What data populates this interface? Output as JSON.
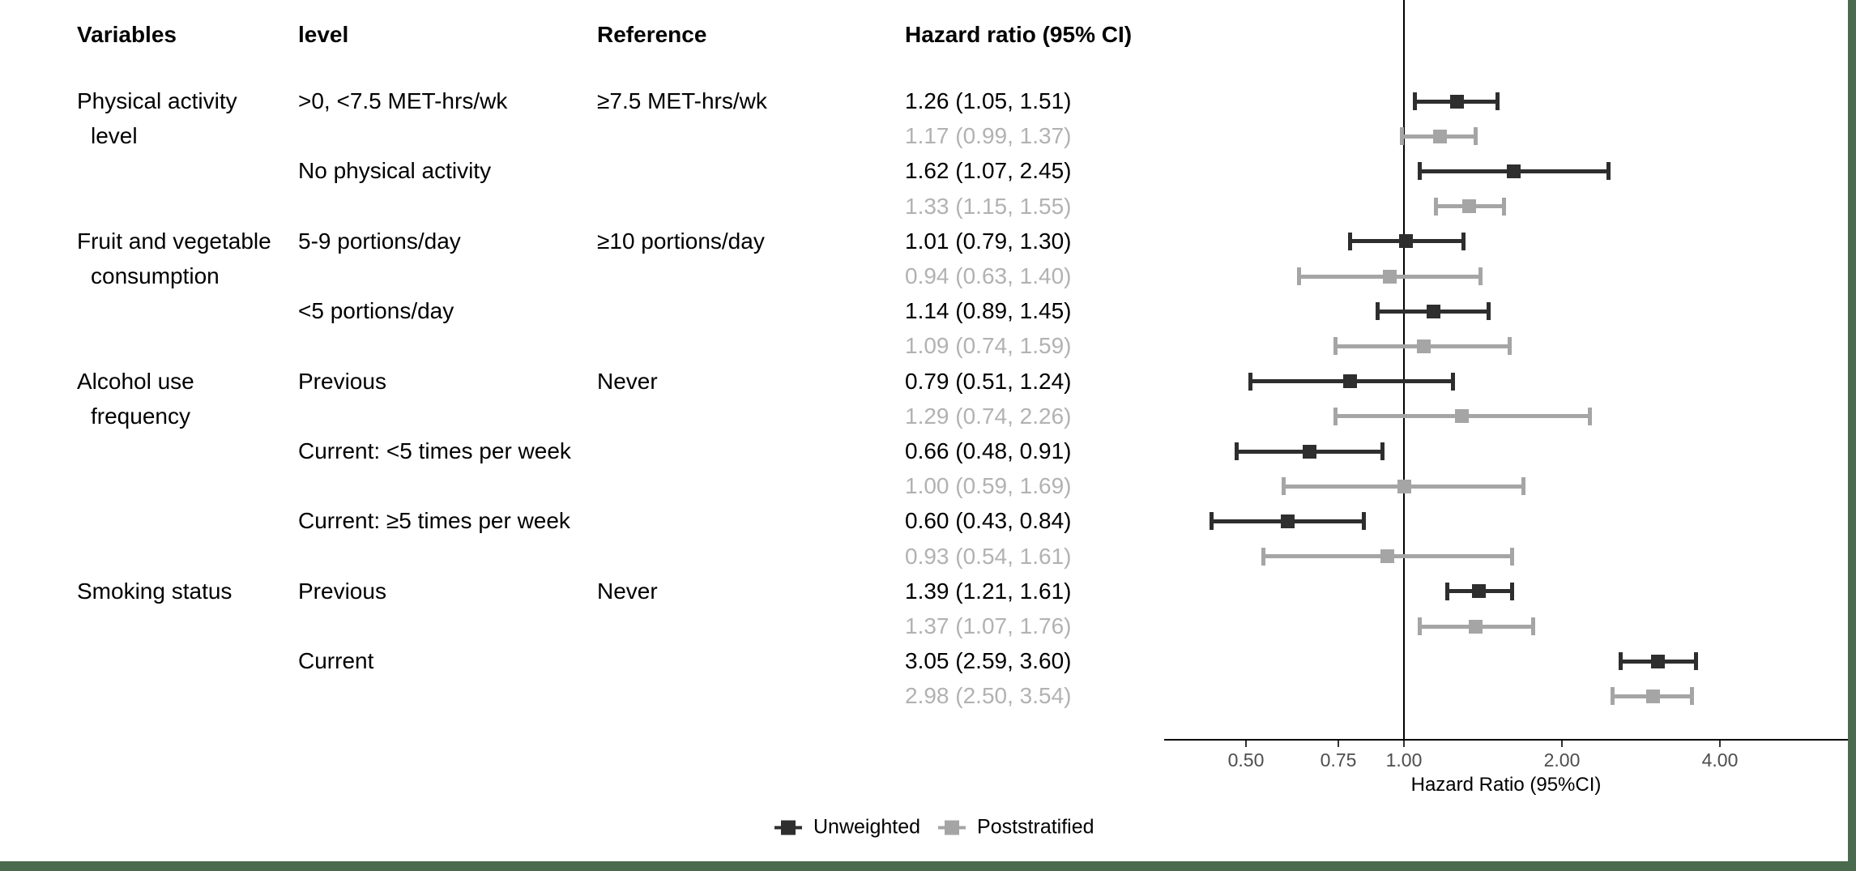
{
  "table": {
    "headers": {
      "variables": "Variables",
      "level": "level",
      "reference": "Reference",
      "hazard_ratio": "Hazard ratio (95% CI)"
    }
  },
  "chart_data": {
    "type": "forest",
    "x_scale": "log",
    "x_ticks": [
      0.5,
      0.75,
      1.0,
      2.0,
      4.0
    ],
    "x_tick_labels": [
      "0.50",
      "0.75",
      "1.00",
      "2.00",
      "4.00"
    ],
    "reference_line": 1.0,
    "xlabel": "Hazard Ratio (95%CI)",
    "legend": [
      {
        "name": "Unweighted",
        "color": "#2e2e2e"
      },
      {
        "name": "Poststratified",
        "color": "#a5a5a5"
      }
    ],
    "rows": [
      {
        "variable": "Physical activity",
        "indent": false,
        "level": ">0, <7.5 MET-hrs/wk",
        "reference": "≥7.5 MET-hrs/wk",
        "hr_text": "1.26 (1.05, 1.51)",
        "hr": 1.26,
        "lo": 1.05,
        "hi": 1.51,
        "series": "unweighted"
      },
      {
        "variable": "level",
        "indent": true,
        "level": "",
        "reference": "",
        "hr_text": "1.17 (0.99, 1.37)",
        "hr": 1.17,
        "lo": 0.99,
        "hi": 1.37,
        "series": "poststratified"
      },
      {
        "variable": "",
        "indent": false,
        "level": "No physical activity",
        "reference": "",
        "hr_text": "1.62 (1.07, 2.45)",
        "hr": 1.62,
        "lo": 1.07,
        "hi": 2.45,
        "series": "unweighted"
      },
      {
        "variable": "",
        "indent": false,
        "level": "",
        "reference": "",
        "hr_text": "1.33 (1.15, 1.55)",
        "hr": 1.33,
        "lo": 1.15,
        "hi": 1.55,
        "series": "poststratified"
      },
      {
        "variable": "Fruit and vegetable",
        "indent": false,
        "level": "5-9 portions/day",
        "reference": "≥10 portions/day",
        "hr_text": "1.01 (0.79, 1.30)",
        "hr": 1.01,
        "lo": 0.79,
        "hi": 1.3,
        "series": "unweighted"
      },
      {
        "variable": "consumption",
        "indent": true,
        "level": "",
        "reference": "",
        "hr_text": "0.94 (0.63, 1.40)",
        "hr": 0.94,
        "lo": 0.63,
        "hi": 1.4,
        "series": "poststratified"
      },
      {
        "variable": "",
        "indent": false,
        "level": "<5 portions/day",
        "reference": "",
        "hr_text": "1.14 (0.89, 1.45)",
        "hr": 1.14,
        "lo": 0.89,
        "hi": 1.45,
        "series": "unweighted"
      },
      {
        "variable": "",
        "indent": false,
        "level": "",
        "reference": "",
        "hr_text": "1.09 (0.74, 1.59)",
        "hr": 1.09,
        "lo": 0.74,
        "hi": 1.59,
        "series": "poststratified"
      },
      {
        "variable": "Alcohol use",
        "indent": false,
        "level": "Previous",
        "reference": "Never",
        "hr_text": "0.79 (0.51, 1.24)",
        "hr": 0.79,
        "lo": 0.51,
        "hi": 1.24,
        "series": "unweighted"
      },
      {
        "variable": "frequency",
        "indent": true,
        "level": "",
        "reference": "",
        "hr_text": "1.29 (0.74, 2.26)",
        "hr": 1.29,
        "lo": 0.74,
        "hi": 2.26,
        "series": "poststratified"
      },
      {
        "variable": "",
        "indent": false,
        "level": "Current: <5 times per week",
        "reference": "",
        "hr_text": "0.66 (0.48, 0.91)",
        "hr": 0.66,
        "lo": 0.48,
        "hi": 0.91,
        "series": "unweighted"
      },
      {
        "variable": "",
        "indent": false,
        "level": "",
        "reference": "",
        "hr_text": "1.00 (0.59, 1.69)",
        "hr": 1.0,
        "lo": 0.59,
        "hi": 1.69,
        "series": "poststratified"
      },
      {
        "variable": "",
        "indent": false,
        "level": "Current: ≥5 times per week",
        "reference": "",
        "hr_text": "0.60 (0.43, 0.84)",
        "hr": 0.6,
        "lo": 0.43,
        "hi": 0.84,
        "series": "unweighted"
      },
      {
        "variable": "",
        "indent": false,
        "level": "",
        "reference": "",
        "hr_text": "0.93 (0.54, 1.61)",
        "hr": 0.93,
        "lo": 0.54,
        "hi": 1.61,
        "series": "poststratified"
      },
      {
        "variable": "Smoking status",
        "indent": false,
        "level": "Previous",
        "reference": "Never",
        "hr_text": "1.39 (1.21, 1.61)",
        "hr": 1.39,
        "lo": 1.21,
        "hi": 1.61,
        "series": "unweighted"
      },
      {
        "variable": "",
        "indent": false,
        "level": "",
        "reference": "",
        "hr_text": "1.37 (1.07, 1.76)",
        "hr": 1.37,
        "lo": 1.07,
        "hi": 1.76,
        "series": "poststratified"
      },
      {
        "variable": "",
        "indent": false,
        "level": "Current",
        "reference": "",
        "hr_text": "3.05 (2.59, 3.60)",
        "hr": 3.05,
        "lo": 2.59,
        "hi": 3.6,
        "series": "unweighted"
      },
      {
        "variable": "",
        "indent": false,
        "level": "",
        "reference": "",
        "hr_text": "2.98 (2.50, 3.54)",
        "hr": 2.98,
        "lo": 2.5,
        "hi": 3.54,
        "series": "poststratified"
      }
    ]
  },
  "colors": {
    "unweighted": "#2e2e2e",
    "poststratified": "#a5a5a5",
    "gray_text": "#b2b2b2",
    "frame_green": "#4a6b4d"
  }
}
